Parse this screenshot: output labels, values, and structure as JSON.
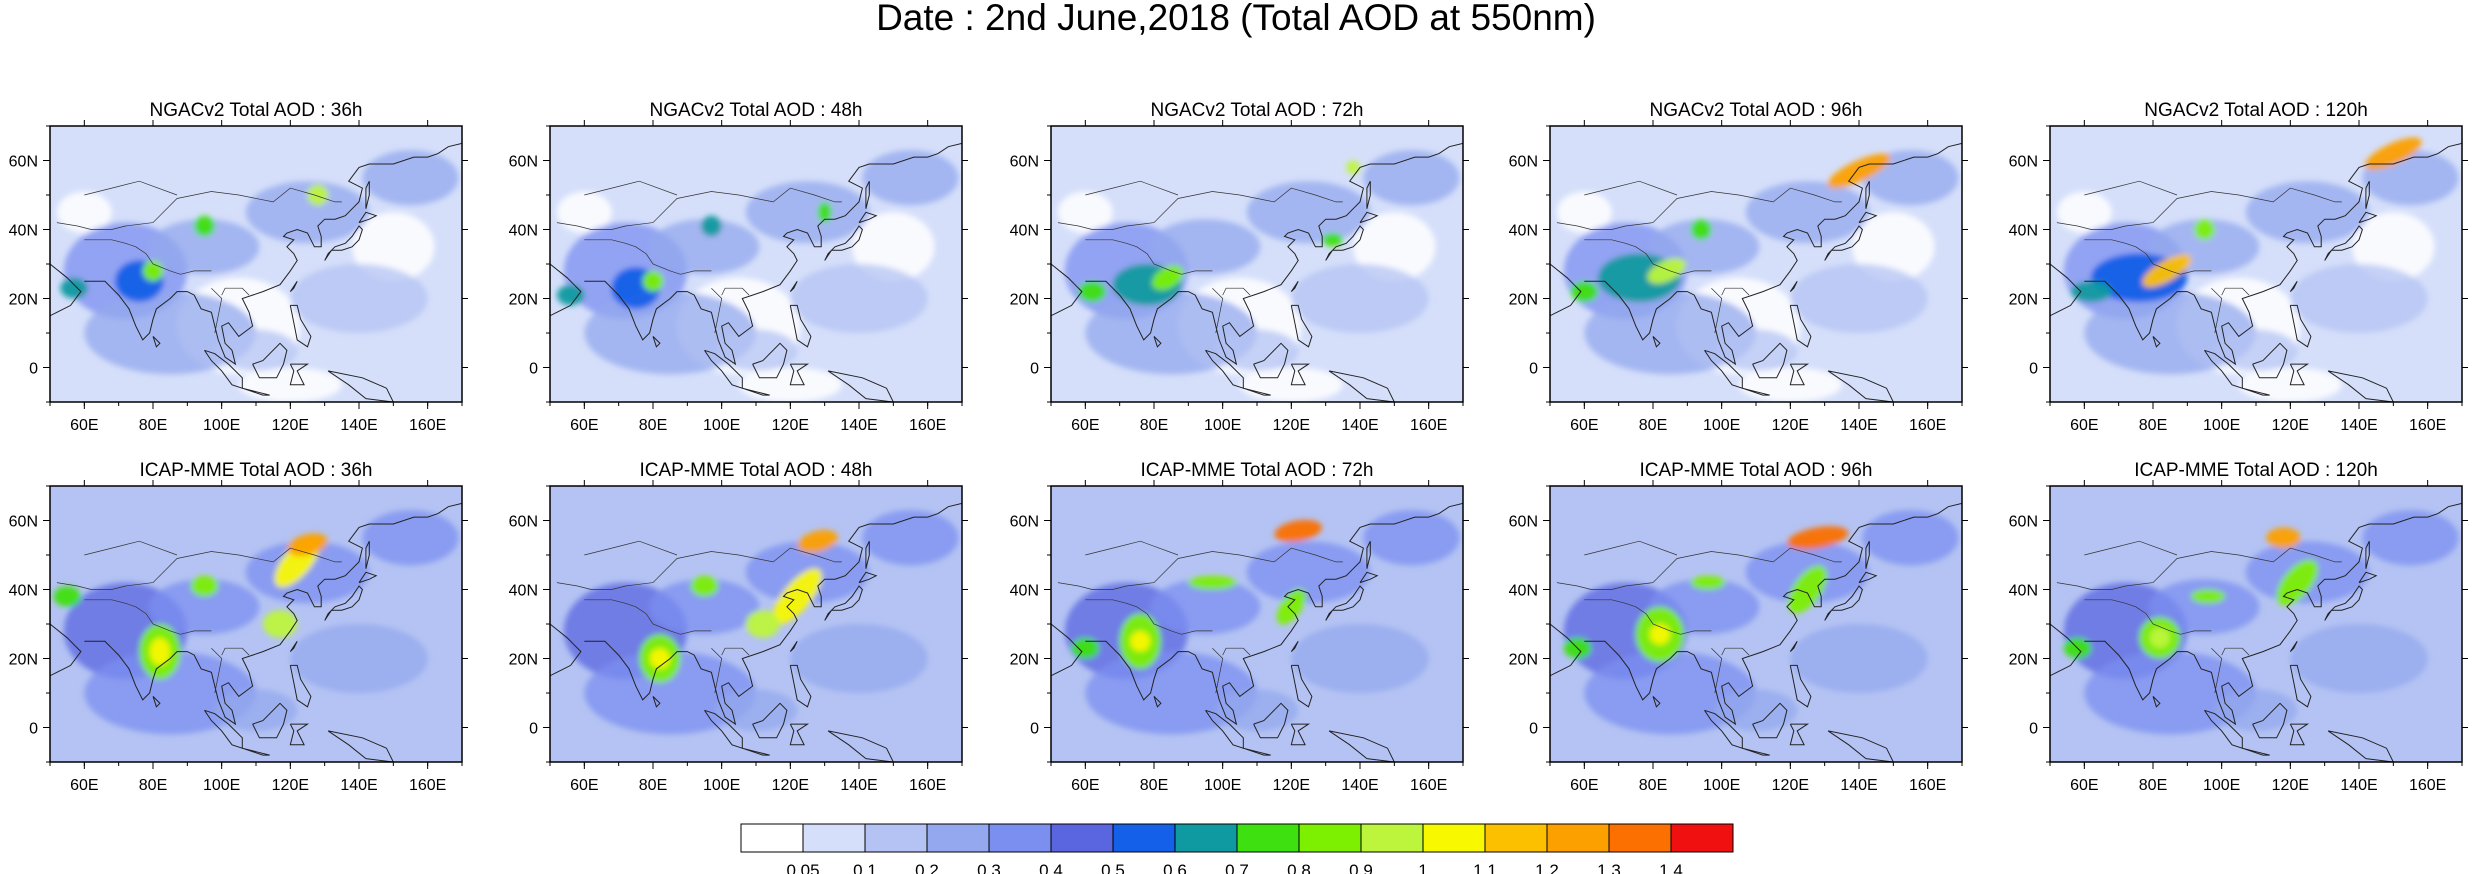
{
  "figure": {
    "title": "Date : 2nd June,2018 (Total AOD at 550nm)"
  },
  "panels": [
    {
      "title": "NGACv2 Total AOD : 36h",
      "model": "NGACv2",
      "lead": "36h"
    },
    {
      "title": "NGACv2 Total AOD : 48h",
      "model": "NGACv2",
      "lead": "48h"
    },
    {
      "title": "NGACv2 Total AOD : 72h",
      "model": "NGACv2",
      "lead": "72h"
    },
    {
      "title": "NGACv2 Total AOD : 96h",
      "model": "NGACv2",
      "lead": "96h"
    },
    {
      "title": "NGACv2 Total AOD : 120h",
      "model": "NGACv2",
      "lead": "120h"
    },
    {
      "title": "ICAP-MME Total AOD : 36h",
      "model": "ICAP-MME",
      "lead": "36h"
    },
    {
      "title": "ICAP-MME Total AOD : 48h",
      "model": "ICAP-MME",
      "lead": "48h"
    },
    {
      "title": "ICAP-MME Total AOD : 72h",
      "model": "ICAP-MME",
      "lead": "72h"
    },
    {
      "title": "ICAP-MME Total AOD : 96h",
      "model": "ICAP-MME",
      "lead": "96h"
    },
    {
      "title": "ICAP-MME Total AOD : 120h",
      "model": "ICAP-MME",
      "lead": "120h"
    }
  ],
  "axes": {
    "lon_ticks": [
      "60E",
      "80E",
      "100E",
      "120E",
      "140E",
      "160E"
    ],
    "lat_ticks": [
      "60N",
      "40N",
      "20N",
      "0"
    ]
  },
  "colorbar": {
    "labels": [
      "0.05",
      "0.1",
      "0.2",
      "0.3",
      "0.4",
      "0.5",
      "0.6",
      "0.7",
      "0.8",
      "0.9",
      "1",
      "1.1",
      "1.2",
      "1.3",
      "1.4"
    ],
    "colors": [
      "#ffffff",
      "#d5dffa",
      "#b4c3f3",
      "#93a8ee",
      "#7b8ff0",
      "#5a66e0",
      "#1560e8",
      "#0e9aa0",
      "#3ee010",
      "#7cf000",
      "#bdf53c",
      "#f8f800",
      "#fcc000",
      "#fca000",
      "#fb7000",
      "#f01010"
    ]
  }
}
